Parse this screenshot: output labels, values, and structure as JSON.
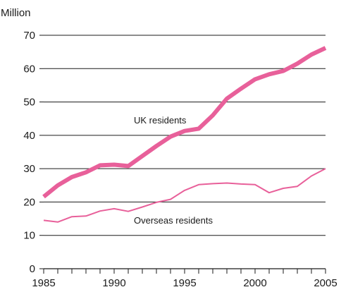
{
  "chart_data": {
    "type": "line",
    "title": "",
    "ylabel": "Million",
    "xlabel": "",
    "xlim": [
      1985,
      2005
    ],
    "ylim": [
      0,
      70
    ],
    "grid": true,
    "x_ticks": [
      "1985",
      "1990",
      "1995",
      "2000",
      "2005"
    ],
    "y_ticks": [
      "0",
      "10",
      "20",
      "30",
      "40",
      "50",
      "60",
      "70"
    ],
    "x": [
      1985,
      1986,
      1987,
      1988,
      1989,
      1990,
      1991,
      1992,
      1993,
      1994,
      1995,
      1996,
      1997,
      1998,
      1999,
      2000,
      2001,
      2002,
      2003,
      2004,
      2005
    ],
    "series": [
      {
        "name": "UK residents",
        "color": "#e8609a",
        "values": [
          21.6,
          25.0,
          27.5,
          28.9,
          31.0,
          31.2,
          30.8,
          33.8,
          36.8,
          39.6,
          41.3,
          42.0,
          46.0,
          51.0,
          54.0,
          56.8,
          58.3,
          59.3,
          61.5,
          64.2,
          66.2
        ]
      },
      {
        "name": "Overseas residents",
        "color": "#e8609a",
        "values": [
          14.5,
          14.0,
          15.6,
          15.8,
          17.3,
          18.0,
          17.2,
          18.5,
          19.9,
          20.8,
          23.5,
          25.2,
          25.5,
          25.7,
          25.4,
          25.2,
          22.8,
          24.1,
          24.7,
          27.8,
          30.0
        ]
      }
    ]
  }
}
